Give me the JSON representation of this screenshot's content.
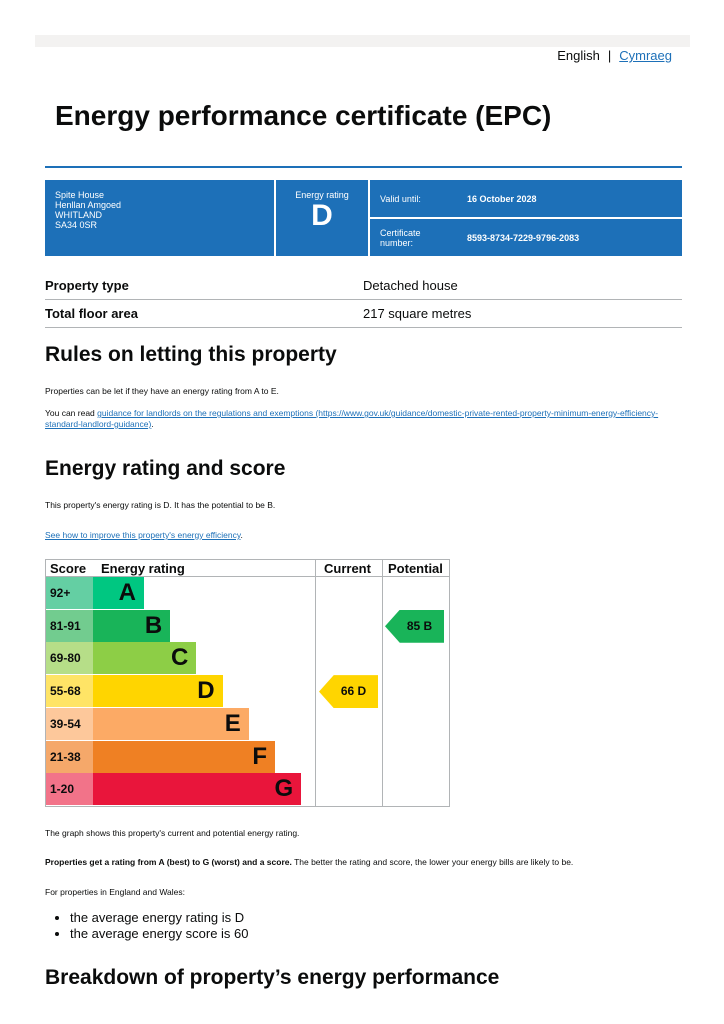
{
  "language": {
    "current": "English",
    "other": "Cymraeg"
  },
  "title": "Energy performance certificate (EPC)",
  "summary": {
    "address": [
      "Spite House",
      "Henllan Amgoed",
      "WHITLAND",
      "SA34 0SR"
    ],
    "rating_label": "Energy rating",
    "rating": "D",
    "valid_label": "Valid until:",
    "valid_value": "16 October 2028",
    "cert_label": "Certificate number:",
    "cert_value": "8593-8734-7229-9796-2083"
  },
  "property": [
    {
      "label": "Property type",
      "value": "Detached house"
    },
    {
      "label": "Total floor area",
      "value": "217 square metres"
    }
  ],
  "letting": {
    "heading": "Rules on letting this property",
    "p1": "Properties can be let if they have an energy rating from A to E.",
    "p2_prefix": "You can read ",
    "p2_link": "guidance for landlords on the regulations and exemptions (https://www.gov.uk/guidance/domestic-private-rented-property-minimum-energy-efficiency-standard-landlord-guidance)",
    "p2_suffix": "."
  },
  "rating_section": {
    "heading": "Energy rating and score",
    "p1": "This property's energy rating is D. It has the potential to be B.",
    "link": "See how to improve this property's energy efficiency",
    "link_suffix": ".",
    "graph_note": "The graph shows this property's current and potential energy rating.",
    "p_bold": "Properties get a rating from A (best) to G (worst) and a score.",
    "p_rest": " The better the rating and score, the lower your energy bills are likely to be.",
    "avg_intro": "For properties in England and Wales:",
    "avg_items": [
      "the average energy rating is D",
      "the average energy score is 60"
    ]
  },
  "chart_data": {
    "type": "table",
    "headers": [
      "Score",
      "Energy rating",
      "Current",
      "Potential"
    ],
    "bands": [
      {
        "score": "92+",
        "letter": "A",
        "color": "#00c781",
        "light": "#64cfa3"
      },
      {
        "score": "81-91",
        "letter": "B",
        "color": "#19b459",
        "light": "#72cc8f"
      },
      {
        "score": "69-80",
        "letter": "C",
        "color": "#8dce46",
        "light": "#b6de88"
      },
      {
        "score": "55-68",
        "letter": "D",
        "color": "#ffd500",
        "light": "#ffe466"
      },
      {
        "score": "39-54",
        "letter": "E",
        "color": "#fcaa65",
        "light": "#fdc89b"
      },
      {
        "score": "21-38",
        "letter": "F",
        "color": "#ef8023",
        "light": "#f5a86a"
      },
      {
        "score": "1-20",
        "letter": "G",
        "color": "#e9153b",
        "light": "#f27389"
      }
    ],
    "current": {
      "score": 66,
      "letter": "D",
      "label": "66  D"
    },
    "potential": {
      "score": 85,
      "letter": "B",
      "label": "85  B"
    }
  },
  "breakdown_heading": "Breakdown of property’s energy performance"
}
